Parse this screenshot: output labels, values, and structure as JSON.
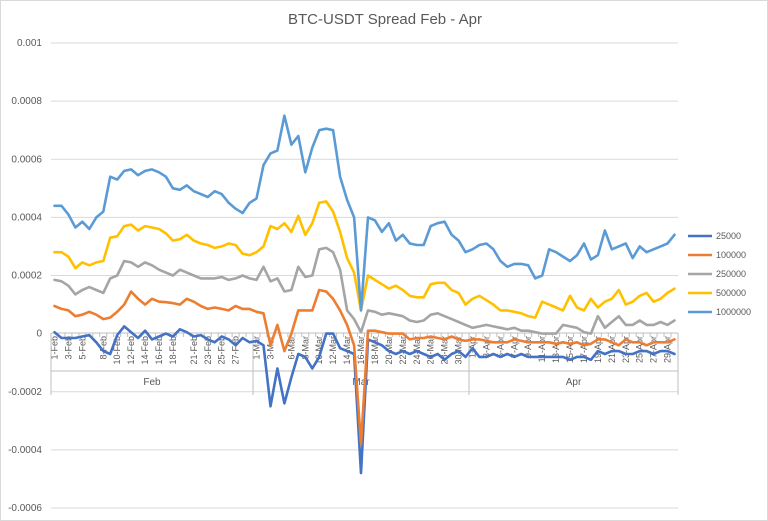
{
  "chart_data": {
    "type": "line",
    "title": "BTC-USDT Spread Feb - Apr",
    "xlabel": "",
    "ylabel": "",
    "ylim": [
      -0.0006,
      0.001
    ],
    "y_ticks": [
      "0.001",
      "0.0008",
      "0.0006",
      "0.0004",
      "0.0002",
      "0",
      "-0.0002",
      "-0.0004",
      "-0.0006"
    ],
    "y_tick_values": [
      0.001,
      0.0008,
      0.0006,
      0.0004,
      0.0002,
      0,
      -0.0002,
      -0.0004,
      -0.0006
    ],
    "grid": true,
    "legend_position": "right",
    "months": [
      {
        "label": "Feb",
        "start": 1,
        "end": 29
      },
      {
        "label": "Mar",
        "start": 30,
        "end": 60
      },
      {
        "label": "Apr",
        "start": 61,
        "end": 90
      }
    ],
    "x_tick_labels": [
      {
        "day": 1,
        "text": "1-Feb"
      },
      {
        "day": 3,
        "text": "3-Feb"
      },
      {
        "day": 5,
        "text": "5-Feb"
      },
      {
        "day": 8,
        "text": "8-Feb"
      },
      {
        "day": 10,
        "text": "10-Feb"
      },
      {
        "day": 12,
        "text": "12-Feb"
      },
      {
        "day": 14,
        "text": "14-Feb"
      },
      {
        "day": 16,
        "text": "16-Feb"
      },
      {
        "day": 18,
        "text": "18-Feb"
      },
      {
        "day": 21,
        "text": "21-Feb"
      },
      {
        "day": 23,
        "text": "23-Feb"
      },
      {
        "day": 25,
        "text": "25-Feb"
      },
      {
        "day": 27,
        "text": "27-Feb"
      },
      {
        "day": 30,
        "text": "1-Mar"
      },
      {
        "day": 32,
        "text": "3-Mar"
      },
      {
        "day": 35,
        "text": "6-Mar"
      },
      {
        "day": 37,
        "text": "8-Mar"
      },
      {
        "day": 39,
        "text": "10-Mar"
      },
      {
        "day": 41,
        "text": "12-Mar"
      },
      {
        "day": 43,
        "text": "14-Mar"
      },
      {
        "day": 45,
        "text": "16-Mar"
      },
      {
        "day": 47,
        "text": "18-Mar"
      },
      {
        "day": 49,
        "text": "20-Mar"
      },
      {
        "day": 51,
        "text": "22-Mar"
      },
      {
        "day": 53,
        "text": "24-Mar"
      },
      {
        "day": 55,
        "text": "26-Mar"
      },
      {
        "day": 57,
        "text": "28-Mar"
      },
      {
        "day": 59,
        "text": "30-Mar"
      },
      {
        "day": 61,
        "text": "1-Apr"
      },
      {
        "day": 63,
        "text": "3-Apr"
      },
      {
        "day": 65,
        "text": "5-Apr"
      },
      {
        "day": 67,
        "text": "7-Apr"
      },
      {
        "day": 69,
        "text": "9-Apr"
      },
      {
        "day": 71,
        "text": "11-Apr"
      },
      {
        "day": 73,
        "text": "13-Apr"
      },
      {
        "day": 75,
        "text": "15-Apr"
      },
      {
        "day": 77,
        "text": "17-Apr"
      },
      {
        "day": 79,
        "text": "19-Apr"
      },
      {
        "day": 81,
        "text": "21-Apr"
      },
      {
        "day": 83,
        "text": "23-Apr"
      },
      {
        "day": 85,
        "text": "25-Apr"
      },
      {
        "day": 87,
        "text": "27-Apr"
      },
      {
        "day": 89,
        "text": "29-Apr"
      }
    ],
    "x": [
      1,
      2,
      3,
      4,
      5,
      6,
      7,
      8,
      9,
      10,
      11,
      12,
      13,
      14,
      15,
      16,
      17,
      18,
      19,
      20,
      21,
      22,
      23,
      24,
      25,
      26,
      27,
      28,
      29,
      30,
      31,
      32,
      33,
      34,
      35,
      36,
      37,
      38,
      39,
      40,
      41,
      42,
      43,
      44,
      45,
      46,
      47,
      48,
      49,
      50,
      51,
      52,
      53,
      54,
      55,
      56,
      57,
      58,
      59,
      60,
      61,
      62,
      63,
      64,
      65,
      66,
      67,
      68,
      69,
      70,
      71,
      72,
      73,
      74,
      75,
      76,
      77,
      78,
      79,
      80,
      81,
      82,
      83,
      84,
      85,
      86,
      87,
      88,
      89,
      90
    ],
    "series": [
      {
        "name": "25000",
        "color": "#4472c4",
        "values": [
          5e-06,
          -1.5e-05,
          -1.5e-05,
          -1.5e-05,
          -1e-05,
          -5e-06,
          -3e-05,
          -6e-05,
          -7e-05,
          -5e-06,
          2.5e-05,
          5e-06,
          -1.5e-05,
          1e-05,
          -2e-05,
          -1e-05,
          0.0,
          -1e-05,
          1.5e-05,
          5e-06,
          -1e-05,
          -5e-06,
          -2e-05,
          -3e-05,
          -1e-05,
          -2e-05,
          -4e-05,
          -1.5e-05,
          -3e-05,
          -2.5e-05,
          -4e-05,
          -0.00025,
          -0.00012,
          -0.00024,
          -0.00015,
          -7e-05,
          -8e-05,
          -0.00012,
          -8e-05,
          0.0,
          0.0,
          -5e-05,
          -6e-05,
          -7e-05,
          -0.00048,
          -2e-05,
          -3e-05,
          -4e-05,
          -6e-05,
          -7e-05,
          -6e-05,
          -7e-05,
          -6e-05,
          -7e-05,
          -8e-05,
          -7e-05,
          -9e-05,
          -7e-05,
          -6e-05,
          -8e-05,
          -5e-05,
          -8e-05,
          -8e-05,
          -7e-05,
          -8e-05,
          -7e-05,
          -8e-05,
          -7e-05,
          -8e-05,
          -8e-05,
          -8e-05,
          -8e-05,
          -8e-05,
          -8e-05,
          -9e-05,
          -8e-05,
          -8e-05,
          -9e-05,
          -6e-05,
          -7e-05,
          -6e-05,
          -6e-05,
          -7e-05,
          -7e-05,
          -6e-05,
          -6e-05,
          -7e-05,
          -6e-05,
          -6e-05,
          -7e-05
        ]
      },
      {
        "name": "100000",
        "color": "#ed7d31",
        "values": [
          9.5e-05,
          8.5e-05,
          8e-05,
          6e-05,
          6.5e-05,
          7.5e-05,
          6.5e-05,
          5e-05,
          5.5e-05,
          7.5e-05,
          0.0001,
          0.000145,
          0.00012,
          0.0001,
          0.00012,
          0.00011,
          0.000108,
          0.000105,
          0.0001,
          0.00012,
          0.00011,
          9.5e-05,
          8.5e-05,
          9e-05,
          8.5e-05,
          8e-05,
          9.5e-05,
          8.5e-05,
          8.5e-05,
          7.5e-05,
          7e-05,
          -4e-05,
          3e-05,
          -6e-05,
          0.0,
          8e-05,
          8e-05,
          8e-05,
          0.00015,
          0.000145,
          0.00012,
          8e-05,
          3e-05,
          -4e-05,
          -0.00038,
          1e-05,
          1e-05,
          5e-06,
          0.0,
          0.0,
          0.0,
          -2e-05,
          -1.5e-05,
          -1.5e-05,
          -1e-05,
          -1.5e-05,
          -2e-05,
          -1e-05,
          -2e-05,
          -2.5e-05,
          -2e-05,
          -2e-05,
          -2.5e-05,
          -3e-05,
          -3e-05,
          -3e-05,
          -2e-05,
          -2.5e-05,
          -3e-05,
          -3e-05,
          -3e-05,
          -3e-05,
          -3.5e-05,
          -3e-05,
          -3.5e-05,
          -3e-05,
          -4e-05,
          -3.5e-05,
          -2e-05,
          -2e-05,
          -3e-05,
          -4e-05,
          -2e-05,
          -3e-05,
          -3e-05,
          -4e-05,
          -3e-05,
          -3e-05,
          -3e-05,
          -2e-05
        ]
      },
      {
        "name": "250000",
        "color": "#a5a5a5",
        "values": [
          0.000185,
          0.00018,
          0.000165,
          0.000135,
          0.00015,
          0.00016,
          0.00015,
          0.00014,
          0.00019,
          0.0002,
          0.00025,
          0.000245,
          0.00023,
          0.000245,
          0.000235,
          0.00022,
          0.00021,
          0.0002,
          0.00022,
          0.00021,
          0.0002,
          0.00019,
          0.00019,
          0.00019,
          0.000195,
          0.000185,
          0.00019,
          0.0002,
          0.00019,
          0.000185,
          0.00023,
          0.00018,
          0.00019,
          0.000145,
          0.00015,
          0.00023,
          0.000195,
          0.0002,
          0.00029,
          0.000295,
          0.00028,
          0.00022,
          8e-05,
          5e-05,
          5e-06,
          8e-05,
          7.5e-05,
          6.5e-05,
          7e-05,
          6.5e-05,
          6e-05,
          4.5e-05,
          4e-05,
          4.5e-05,
          6.5e-05,
          7e-05,
          6e-05,
          5e-05,
          4e-05,
          3e-05,
          2e-05,
          2.5e-05,
          3e-05,
          2.5e-05,
          2e-05,
          1.5e-05,
          2e-05,
          1e-05,
          1e-05,
          5e-06,
          0.0,
          0.0,
          0.0,
          3e-05,
          2.5e-05,
          2e-05,
          5e-06,
          0.0,
          6e-05,
          2e-05,
          4e-05,
          6e-05,
          3e-05,
          3e-05,
          4.5e-05,
          3e-05,
          3e-05,
          4e-05,
          3e-05,
          4.5e-05
        ]
      },
      {
        "name": "500000",
        "color": "#ffc000",
        "values": [
          0.00028,
          0.00028,
          0.000265,
          0.000225,
          0.000245,
          0.000235,
          0.000245,
          0.00025,
          0.00033,
          0.000335,
          0.00037,
          0.000375,
          0.000355,
          0.00037,
          0.000365,
          0.00036,
          0.000345,
          0.00032,
          0.000325,
          0.00034,
          0.00032,
          0.00031,
          0.000305,
          0.000295,
          0.0003,
          0.00031,
          0.000305,
          0.000275,
          0.00027,
          0.00028,
          0.0003,
          0.00037,
          0.00036,
          0.00038,
          0.00035,
          0.000405,
          0.00034,
          0.00038,
          0.00045,
          0.000455,
          0.00042,
          0.00035,
          0.00026,
          0.00021,
          8e-05,
          0.0002,
          0.000185,
          0.00017,
          0.000155,
          0.000165,
          0.00015,
          0.00013,
          0.000125,
          0.000125,
          0.00017,
          0.000175,
          0.000175,
          0.00015,
          0.00014,
          0.0001,
          0.00012,
          0.00013,
          0.000115,
          0.0001,
          8e-05,
          8e-05,
          7.5e-05,
          7e-05,
          6e-05,
          5.5e-05,
          0.00011,
          0.0001,
          9e-05,
          8e-05,
          0.00013,
          9e-05,
          8e-05,
          0.00012,
          9e-05,
          0.00011,
          0.00012,
          0.00015,
          0.0001,
          0.00011,
          0.00013,
          0.00014,
          0.00011,
          0.00012,
          0.00014,
          0.000155
        ]
      },
      {
        "name": "1000000",
        "color": "#5b9bd5",
        "values": [
          0.00044,
          0.00044,
          0.00041,
          0.000365,
          0.000385,
          0.00036,
          0.0004,
          0.00042,
          0.00054,
          0.00053,
          0.00056,
          0.000565,
          0.000545,
          0.00056,
          0.000565,
          0.000555,
          0.00054,
          0.0005,
          0.000495,
          0.00051,
          0.00049,
          0.00048,
          0.00047,
          0.00049,
          0.00048,
          0.00045,
          0.00043,
          0.000415,
          0.00045,
          0.000465,
          0.00058,
          0.00062,
          0.00063,
          0.00075,
          0.00065,
          0.00068,
          0.000555,
          0.00064,
          0.0007,
          0.000705,
          0.0007,
          0.00054,
          0.00046,
          0.0004,
          8e-05,
          0.0004,
          0.00039,
          0.00035,
          0.00038,
          0.00032,
          0.00034,
          0.00031,
          0.000305,
          0.000305,
          0.00037,
          0.00038,
          0.000385,
          0.00034,
          0.00032,
          0.00028,
          0.00029,
          0.000305,
          0.00031,
          0.00029,
          0.00025,
          0.00023,
          0.00024,
          0.00024,
          0.000235,
          0.00019,
          0.0002,
          0.00029,
          0.00028,
          0.000265,
          0.00025,
          0.00027,
          0.00031,
          0.000255,
          0.00027,
          0.000355,
          0.00029,
          0.0003,
          0.00031,
          0.00026,
          0.0003,
          0.00028,
          0.00029,
          0.0003,
          0.00031,
          0.00034
        ]
      }
    ]
  }
}
